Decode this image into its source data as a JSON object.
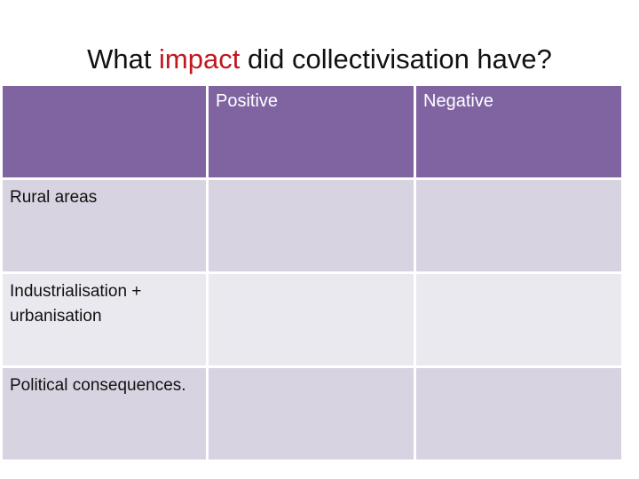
{
  "title": {
    "before": "What ",
    "accent": "impact",
    "after": " did collectivisation have?",
    "accent_color": "#c0171e"
  },
  "table": {
    "header_color": "#8064a2",
    "row_color": "#d7d3e0",
    "row_alt_color": "#ebe9f0",
    "columns": [
      "",
      "Positive",
      "Negative"
    ],
    "rows": [
      {
        "label": "Rural areas",
        "positive": "",
        "negative": ""
      },
      {
        "label": "Industrialisation + urbanisation",
        "positive": "",
        "negative": ""
      },
      {
        "label": "Political consequences.",
        "positive": "",
        "negative": ""
      }
    ]
  }
}
